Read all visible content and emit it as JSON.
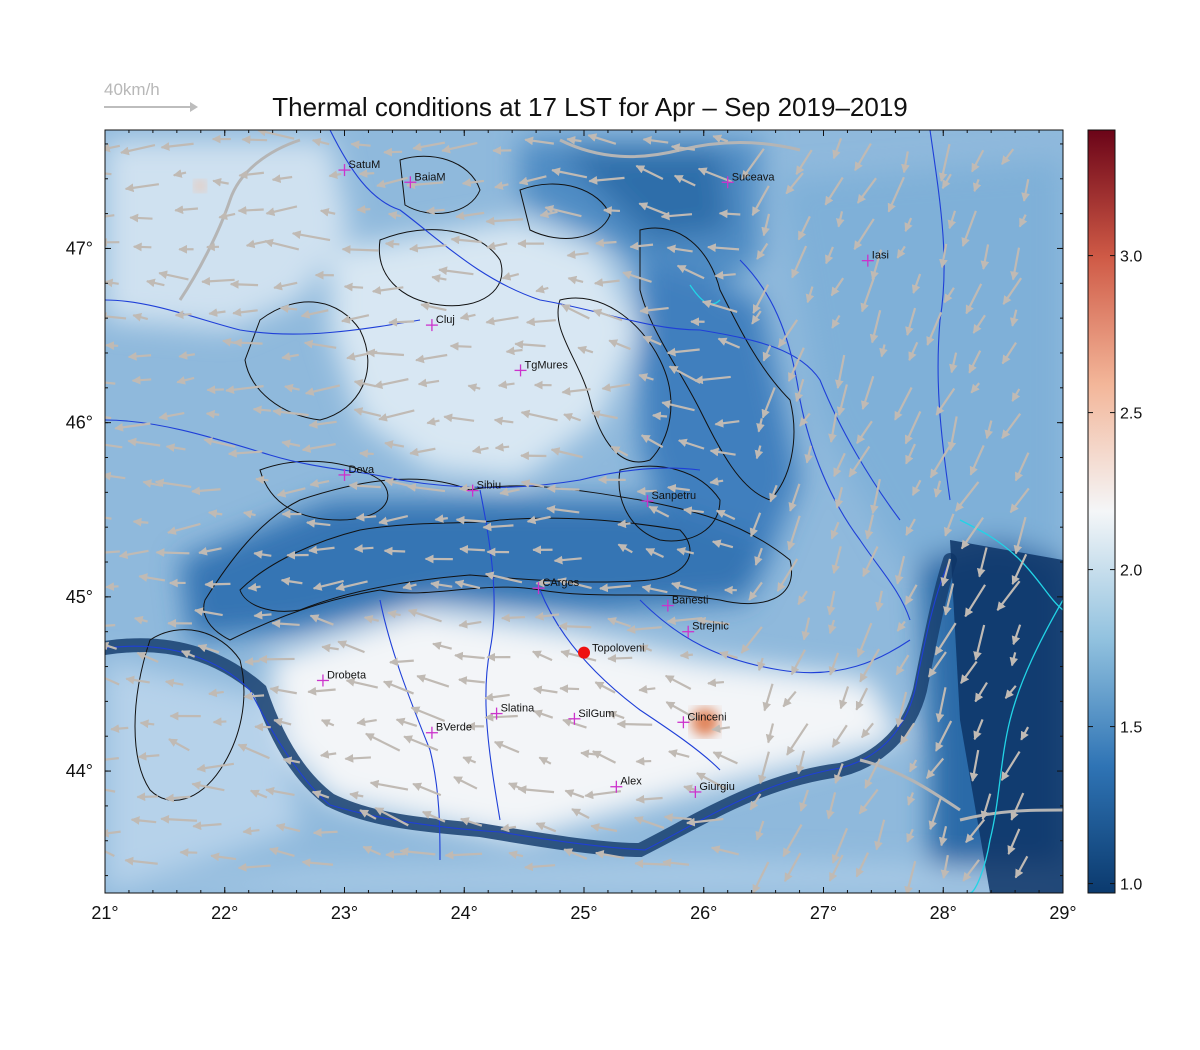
{
  "title": "Thermal conditions at 17 LST for Apr – Sep  2019–2019",
  "wind_legend": {
    "label": "40km/h"
  },
  "axes": {
    "lon_min": 21,
    "lon_max": 29,
    "lat_min": 43.3,
    "lat_max": 47.68,
    "x_ticks": [
      {
        "value": 21,
        "label": "21°"
      },
      {
        "value": 22,
        "label": "22°"
      },
      {
        "value": 23,
        "label": "23°"
      },
      {
        "value": 24,
        "label": "24°"
      },
      {
        "value": 25,
        "label": "25°"
      },
      {
        "value": 26,
        "label": "26°"
      },
      {
        "value": 27,
        "label": "27°"
      },
      {
        "value": 28,
        "label": "28°"
      },
      {
        "value": 29,
        "label": "29°"
      }
    ],
    "y_ticks": [
      {
        "value": 44,
        "label": "44°"
      },
      {
        "value": 45,
        "label": "45°"
      },
      {
        "value": 46,
        "label": "46°"
      },
      {
        "value": 47,
        "label": "47°"
      }
    ]
  },
  "colorbar": {
    "min": 0.97,
    "max": 3.4,
    "ticks": [
      {
        "value": 1.0,
        "label": "1.0"
      },
      {
        "value": 1.5,
        "label": "1.5"
      },
      {
        "value": 2.0,
        "label": "2.0"
      },
      {
        "value": 2.5,
        "label": "2.5"
      },
      {
        "value": 3.0,
        "label": "3.0"
      }
    ],
    "colors": [
      "#0b3a6e",
      "#2f74b5",
      "#92c2df",
      "#f4f6f8",
      "#f3b699",
      "#cf5a46",
      "#6b0418"
    ]
  },
  "highlight": {
    "name": "Topoloveni",
    "lon": 25.0,
    "lat": 44.68,
    "color": "#ee1111"
  },
  "cities": [
    {
      "name": "SatuM",
      "lon": 23.0,
      "lat": 47.45
    },
    {
      "name": "BaiaM",
      "lon": 23.55,
      "lat": 47.38
    },
    {
      "name": "Suceava",
      "lon": 26.2,
      "lat": 47.38
    },
    {
      "name": "Iasi",
      "lon": 27.37,
      "lat": 46.93
    },
    {
      "name": "Cluj",
      "lon": 23.73,
      "lat": 46.56
    },
    {
      "name": "TgMures",
      "lon": 24.47,
      "lat": 46.3
    },
    {
      "name": "Deva",
      "lon": 23.0,
      "lat": 45.7
    },
    {
      "name": "Sibiu",
      "lon": 24.07,
      "lat": 45.61
    },
    {
      "name": "Sanpetru",
      "lon": 25.53,
      "lat": 45.55
    },
    {
      "name": "CArges",
      "lon": 24.62,
      "lat": 45.05
    },
    {
      "name": "Banesti",
      "lon": 25.7,
      "lat": 44.95
    },
    {
      "name": "Strejnic",
      "lon": 25.87,
      "lat": 44.8
    },
    {
      "name": "Drobeta",
      "lon": 22.82,
      "lat": 44.52
    },
    {
      "name": "Slatina",
      "lon": 24.27,
      "lat": 44.33
    },
    {
      "name": "SilGum",
      "lon": 24.92,
      "lat": 44.3
    },
    {
      "name": "Clinceni",
      "lon": 25.83,
      "lat": 44.28
    },
    {
      "name": "BVerde",
      "lon": 23.73,
      "lat": 44.22
    },
    {
      "name": "Alex",
      "lon": 25.27,
      "lat": 43.91
    },
    {
      "name": "Giurgiu",
      "lon": 25.93,
      "lat": 43.88
    }
  ],
  "colors": {
    "city_marker": "#cc33cc",
    "rivers": "#1f3fd8",
    "borders": "#b5b5b5",
    "contours": "#111111",
    "coast": "#22d4e6",
    "wind_arrows": "#c0bab4"
  }
}
